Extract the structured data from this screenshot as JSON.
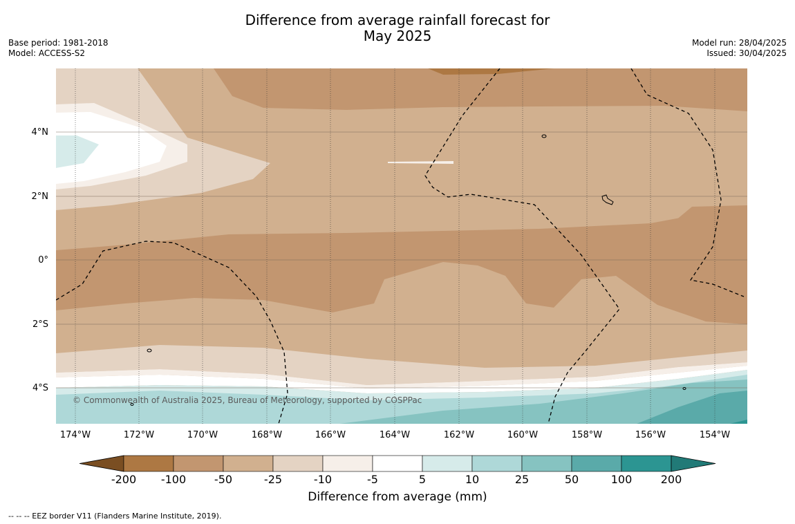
{
  "title_line1": "Difference from average rainfall forecast for",
  "title_line2": "May 2025",
  "base_period": "Base period: 1981-2018",
  "model": "Model: ACCESS-S2",
  "model_run": "Model run: 28/04/2025",
  "issued": "Issued: 30/04/2025",
  "lat_ticks": [
    "4°N",
    "2°N",
    "0°",
    "2°S",
    "4°S"
  ],
  "lon_ticks": [
    "174°W",
    "172°W",
    "170°W",
    "168°W",
    "166°W",
    "164°W",
    "162°W",
    "160°W",
    "158°W",
    "156°W",
    "154°W"
  ],
  "copyright": "© Commonwealth of Australia 2025, Bureau of Meteorology, supported by COSPPac",
  "colorbar": {
    "title": "Difference from average (mm)",
    "labels": [
      "-200",
      "-100",
      "-50",
      "-25",
      "-10",
      "-5",
      "5",
      "10",
      "25",
      "50",
      "100",
      "200"
    ],
    "colors": [
      "#7a4e22",
      "#ad7843",
      "#c29670",
      "#d1b08f",
      "#e4d3c3",
      "#f6efe9",
      "#ffffff",
      "#d6ebea",
      "#aed8d8",
      "#86c3c1",
      "#5aaaa9",
      "#2c9592",
      "#217a77"
    ]
  },
  "footnote": "--  --  -- EEZ border V11 (Flanders Marine Institute, 2019)."
}
